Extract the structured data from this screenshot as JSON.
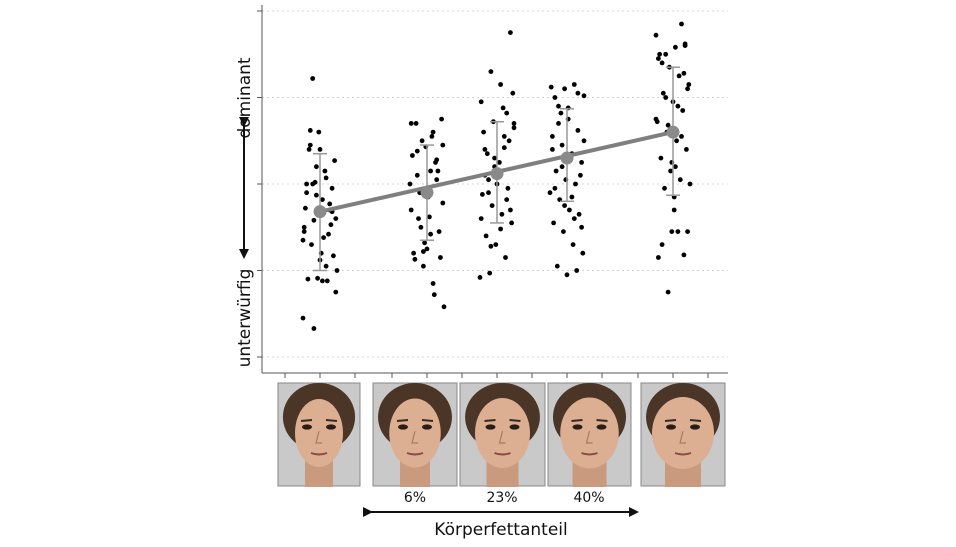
{
  "chart_data": {
    "type": "scatter",
    "y_top_label": "dominant",
    "y_bottom_label": "unterwürfig",
    "x_axis_label": "Körperfettanteil",
    "x_tick_labels": [
      "",
      "6%",
      "23%",
      "40%",
      ""
    ],
    "grid": "horizontal dashed",
    "ylim": [
      0,
      4
    ],
    "y_gridlines": [
      0,
      1,
      2,
      3,
      4
    ],
    "categories": [
      "1",
      "2",
      "3",
      "4",
      "5"
    ],
    "means": [
      1.68,
      1.9,
      2.12,
      2.3,
      2.6
    ],
    "error_upper": [
      2.35,
      2.45,
      2.72,
      2.87,
      3.35
    ],
    "error_lower": [
      1.0,
      1.35,
      1.55,
      1.8,
      1.87
    ],
    "colors": {
      "points": "#000000",
      "mean": "#8a8a8a",
      "error": "#999999",
      "line": "#7f7f7f"
    },
    "points": [
      [
        0.45,
        3.22,
        0.88,
        1.95,
        2.0,
        1.87,
        2.07,
        1.6,
        2.45,
        2.4,
        1.77,
        1.45,
        1.58,
        1.38,
        1.17,
        0.9,
        0.91,
        0.88,
        1.0,
        1.3,
        1.2,
        1.53,
        1.72,
        2.02,
        2.15,
        2.27,
        2.4,
        2.6,
        1.42,
        1.35,
        2.0,
        1.82,
        1.68,
        1.9,
        2.2,
        1.05,
        0.75,
        2.62,
        1.12,
        1.7,
        1.5,
        0.33
      ],
      [
        1.22,
        2.6,
        2.45,
        2.1,
        1.95,
        2.05,
        1.7,
        1.5,
        1.42,
        1.15,
        1.13,
        1.32,
        0.72,
        0.58,
        1.6,
        1.85,
        2.15,
        2.33,
        2.5,
        2.55,
        2.75,
        2.7,
        2.43,
        2.25,
        2.0,
        1.9,
        1.62,
        1.45,
        1.2,
        1.05,
        0.85,
        1.78,
        2.38,
        1.25,
        2.28,
        2.7,
        1.9,
        2.15
      ],
      [
        2.82,
        2.95,
        3.3,
        3.15,
        3.75,
        2.4,
        2.3,
        2.55,
        2.65,
        2.05,
        2.15,
        1.95,
        1.88,
        1.75,
        1.65,
        1.55,
        1.4,
        1.3,
        1.15,
        0.92,
        0.97,
        2.25,
        2.5,
        2.6,
        2.72,
        2.88,
        3.05,
        2.35,
        2.0,
        1.82,
        1.6,
        1.28,
        1.48,
        1.7,
        2.1,
        2.2,
        2.42,
        2.7,
        1.9
      ],
      [
        3.0,
        3.1,
        3.15,
        3.02,
        2.9,
        2.75,
        2.62,
        2.55,
        2.45,
        2.35,
        2.25,
        2.15,
        2.05,
        2.0,
        1.9,
        1.82,
        1.7,
        1.65,
        1.55,
        1.45,
        1.3,
        1.2,
        1.05,
        0.95,
        1.0,
        3.12,
        2.82,
        2.28,
        2.1,
        1.95,
        1.75,
        1.6,
        2.5,
        2.7,
        2.88,
        3.05,
        2.4,
        2.2,
        1.85,
        1.5
      ],
      [
        1.7,
        1.18,
        1.15,
        0.75,
        1.45,
        1.45,
        1.3,
        1.45,
        3.85,
        3.72,
        3.5,
        3.58,
        3.62,
        3.5,
        3.35,
        3.25,
        3.15,
        3.05,
        2.95,
        2.85,
        2.72,
        2.6,
        2.5,
        2.4,
        2.3,
        2.15,
        2.05,
        2.0,
        1.95,
        1.85,
        3.28,
        3.45,
        2.68,
        2.9,
        3.1,
        3.4,
        2.25,
        2.55,
        2.75,
        3.0,
        2.2,
        3.6
      ]
    ]
  },
  "images": {
    "face_labels": [
      "",
      "",
      "",
      "",
      ""
    ]
  }
}
